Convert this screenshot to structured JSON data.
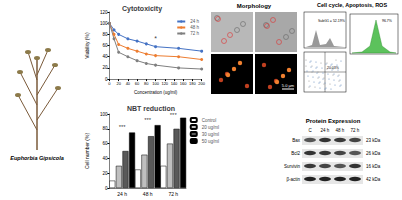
{
  "plant": {
    "label": "Euphorbia Gipsicola"
  },
  "chart_data": [
    {
      "type": "line",
      "title": "Cytotoxicity",
      "x_label": "Concentration (ug/ml)",
      "y_label": "Viability (%)",
      "x": [
        0,
        10,
        20,
        40,
        60,
        80,
        100,
        150,
        200
      ],
      "series": [
        {
          "name": "24 h",
          "color": "#4472c4",
          "values": [
            100,
            88,
            80,
            72,
            68,
            63,
            58,
            55,
            50
          ]
        },
        {
          "name": "48 h",
          "color": "#ed7d31",
          "values": [
            100,
            80,
            62,
            55,
            50,
            45,
            42,
            40,
            35
          ]
        },
        {
          "name": "72 h",
          "color": "#7f7f7f",
          "values": [
            100,
            72,
            48,
            40,
            33,
            28,
            25,
            20,
            18
          ]
        }
      ],
      "xlim": [
        0,
        200
      ],
      "xticks": [
        0,
        20,
        40,
        60,
        80,
        100,
        120,
        140,
        160,
        180,
        200
      ],
      "ylim": [
        0,
        120
      ],
      "yticks": [
        0,
        20,
        40,
        60,
        80,
        100,
        120
      ],
      "legend": "upper right",
      "marker": "circle",
      "annotations": [
        {
          "text": "*",
          "x": 100,
          "y": 72
        }
      ]
    },
    {
      "type": "bar",
      "title": "NBT reduction",
      "y_label": "Cell number (%)",
      "categories": [
        "24 h",
        "48 h",
        "72 h"
      ],
      "series": [
        {
          "name": "Control",
          "color": "#ffffff",
          "values": [
            10,
            25,
            30
          ]
        },
        {
          "name": "20 ug/ml",
          "color": "#bfbfbf",
          "values": [
            30,
            45,
            60
          ]
        },
        {
          "name": "30 ug/ml",
          "color": "#595959",
          "values": [
            50,
            70,
            80
          ]
        },
        {
          "name": "50 ug/ml",
          "color": "#000000",
          "values": [
            75,
            85,
            95
          ]
        }
      ],
      "ylim": [
        0,
        100
      ],
      "yticks": [
        0,
        20,
        40,
        60,
        80,
        100
      ],
      "legend": "upper left",
      "annotations": [
        {
          "text": "***",
          "x": "24 h",
          "y": 82
        },
        {
          "text": "***",
          "x": "48 h",
          "y": 92
        },
        {
          "text": "***",
          "x": "72 h",
          "y": 98
        }
      ]
    }
  ],
  "morphology": {
    "title": "Morphology",
    "scale_bar": "5.0 µm"
  },
  "flow": {
    "title": "Cell cycle, Apoptosis, ROS",
    "labels": [
      "SubG1 = 52.19%",
      "20.03%",
      "96.7%"
    ]
  },
  "protein": {
    "title": "Protein Expression",
    "lanes": [
      "C",
      "24 h",
      "48 h",
      "72 h"
    ],
    "rows": [
      {
        "name": "Bax",
        "size": "23 kDa"
      },
      {
        "name": "Bcl2",
        "size": "26 kDa"
      },
      {
        "name": "Survivin",
        "size": "16 kDa"
      },
      {
        "name": "β-actin",
        "size": "42 kDa"
      }
    ]
  }
}
